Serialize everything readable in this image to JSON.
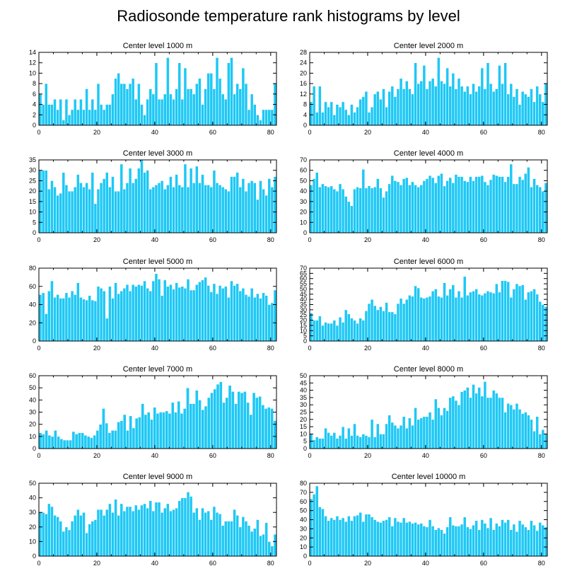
{
  "title": "Radiosonde temperature rank histograms by level",
  "colors": {
    "bar": "#1ec8f5",
    "bar_edge": "#ffffff",
    "axis": "#000000"
  },
  "chart_data": [
    {
      "type": "bar",
      "title": "Center level 1000 m",
      "xlim": [
        0,
        82
      ],
      "ylim": [
        0,
        14
      ],
      "xticks": [
        0,
        20,
        40,
        60,
        80
      ],
      "yticks": [
        0,
        2,
        4,
        6,
        8,
        10,
        12,
        14
      ],
      "values": [
        6,
        4,
        8,
        4,
        4,
        5,
        3,
        5,
        1,
        5,
        2,
        3,
        5,
        3,
        5,
        3,
        7,
        3,
        5,
        3,
        8,
        4,
        3,
        4,
        4,
        6,
        9,
        10,
        8,
        8,
        7,
        8,
        9,
        5,
        8,
        4,
        2,
        5,
        7,
        6,
        12,
        5,
        5,
        6,
        13,
        6,
        5,
        7,
        12,
        5,
        11,
        7,
        7,
        6,
        8,
        9,
        4,
        7,
        10,
        10,
        7,
        13,
        9,
        6,
        5,
        12,
        13,
        6,
        8,
        7,
        11,
        8,
        3,
        6,
        4,
        2,
        1,
        3,
        3,
        3,
        3,
        8
      ]
    },
    {
      "type": "bar",
      "title": "Center level 2000 m",
      "xlim": [
        0,
        82
      ],
      "ylim": [
        0,
        28
      ],
      "xticks": [
        0,
        20,
        40,
        60,
        80
      ],
      "yticks": [
        0,
        4,
        8,
        12,
        16,
        20,
        24,
        28
      ],
      "values": [
        9,
        15,
        5,
        15,
        5,
        9,
        7,
        9,
        4,
        8,
        7,
        9,
        6,
        4,
        8,
        5,
        7,
        10,
        11,
        13,
        5,
        7,
        12,
        13,
        10,
        14,
        7,
        13,
        15,
        11,
        14,
        18,
        14,
        17,
        14,
        12,
        24,
        16,
        17,
        23,
        14,
        17,
        18,
        15,
        26,
        17,
        16,
        22,
        15,
        20,
        14,
        18,
        15,
        13,
        15,
        12,
        16,
        13,
        15,
        22,
        14,
        24,
        16,
        13,
        14,
        23,
        16,
        24,
        12,
        16,
        11,
        14,
        8,
        13,
        12,
        11,
        14,
        9,
        15,
        12,
        9,
        16
      ]
    },
    {
      "type": "bar",
      "title": "Center level 3000 m",
      "xlim": [
        0,
        82
      ],
      "ylim": [
        0,
        35
      ],
      "xticks": [
        0,
        20,
        40,
        60,
        80
      ],
      "yticks": [
        0,
        5,
        10,
        15,
        20,
        25,
        30,
        35
      ],
      "values": [
        30,
        30,
        30,
        21,
        25,
        22,
        18,
        19,
        29,
        23,
        20,
        20,
        22,
        28,
        24,
        22,
        24,
        21,
        29,
        14,
        21,
        24,
        26,
        29,
        22,
        27,
        20,
        20,
        33,
        21,
        24,
        31,
        24,
        26,
        31,
        35,
        29,
        30,
        21,
        22,
        23,
        24,
        25,
        21,
        23,
        27,
        22,
        28,
        23,
        22,
        33,
        22,
        31,
        24,
        32,
        24,
        28,
        23,
        23,
        22,
        30,
        24,
        23,
        22,
        21,
        20,
        27,
        27,
        29,
        22,
        26,
        20,
        24,
        25,
        24,
        16,
        25,
        21,
        18,
        26,
        22,
        27
      ]
    },
    {
      "type": "bar",
      "title": "Center level 4000 m",
      "xlim": [
        0,
        82
      ],
      "ylim": [
        0,
        70
      ],
      "xticks": [
        0,
        20,
        40,
        60,
        80
      ],
      "yticks": [
        0,
        10,
        20,
        30,
        40,
        50,
        60,
        70
      ],
      "values": [
        46,
        52,
        58,
        44,
        47,
        45,
        44,
        45,
        42,
        40,
        47,
        42,
        35,
        30,
        26,
        42,
        44,
        43,
        61,
        43,
        45,
        43,
        44,
        52,
        43,
        34,
        40,
        47,
        55,
        50,
        49,
        46,
        52,
        53,
        46,
        49,
        46,
        44,
        46,
        50,
        52,
        55,
        53,
        48,
        55,
        57,
        45,
        50,
        53,
        48,
        56,
        54,
        54,
        50,
        49,
        54,
        50,
        54,
        54,
        55,
        49,
        46,
        51,
        56,
        55,
        54,
        54,
        49,
        54,
        66,
        47,
        47,
        54,
        51,
        57,
        63,
        44,
        52,
        46,
        44,
        40,
        48
      ]
    },
    {
      "type": "bar",
      "title": "Center level 5000 m",
      "xlim": [
        0,
        82
      ],
      "ylim": [
        0,
        80
      ],
      "xticks": [
        0,
        20,
        40,
        60,
        80
      ],
      "yticks": [
        0,
        20,
        40,
        60,
        80
      ],
      "values": [
        51,
        53,
        30,
        55,
        66,
        48,
        51,
        47,
        47,
        53,
        48,
        55,
        51,
        64,
        48,
        46,
        45,
        50,
        45,
        44,
        60,
        58,
        55,
        25,
        60,
        47,
        64,
        52,
        55,
        58,
        62,
        55,
        62,
        60,
        62,
        61,
        66,
        58,
        55,
        66,
        74,
        68,
        50,
        67,
        60,
        62,
        57,
        64,
        59,
        60,
        58,
        68,
        56,
        56,
        62,
        65,
        67,
        70,
        61,
        54,
        63,
        52,
        61,
        58,
        60,
        48,
        66,
        61,
        63,
        55,
        58,
        51,
        49,
        58,
        48,
        52,
        47,
        53,
        50,
        40,
        42,
        56
      ]
    },
    {
      "type": "bar",
      "title": "Center level 6000 m",
      "xlim": [
        0,
        82
      ],
      "ylim": [
        0,
        70
      ],
      "xticks": [
        0,
        20,
        40,
        60,
        80
      ],
      "yticks": [
        0,
        5,
        10,
        15,
        20,
        25,
        30,
        35,
        40,
        45,
        50,
        55,
        60,
        65,
        70
      ],
      "values": [
        27,
        20,
        20,
        24,
        15,
        18,
        17,
        17,
        20,
        15,
        23,
        18,
        30,
        26,
        22,
        20,
        17,
        22,
        20,
        29,
        36,
        40,
        34,
        30,
        33,
        29,
        37,
        28,
        28,
        26,
        36,
        41,
        36,
        40,
        44,
        43,
        53,
        51,
        42,
        41,
        42,
        43,
        48,
        50,
        43,
        42,
        56,
        44,
        50,
        54,
        42,
        48,
        42,
        62,
        44,
        47,
        48,
        50,
        45,
        44,
        46,
        48,
        47,
        46,
        55,
        47,
        58,
        58,
        57,
        42,
        50,
        55,
        53,
        54,
        40,
        47,
        48,
        50,
        45,
        38,
        35,
        33
      ]
    },
    {
      "type": "bar",
      "title": "Center level 7000 m",
      "xlim": [
        0,
        82
      ],
      "ylim": [
        0,
        60
      ],
      "xticks": [
        0,
        20,
        40,
        60,
        80
      ],
      "yticks": [
        0,
        10,
        20,
        30,
        40,
        50,
        60
      ],
      "values": [
        13,
        12,
        15,
        11,
        10,
        15,
        10,
        8,
        7,
        7,
        7,
        14,
        12,
        13,
        13,
        11,
        10,
        9,
        11,
        15,
        20,
        33,
        21,
        13,
        15,
        15,
        22,
        23,
        28,
        15,
        27,
        17,
        25,
        26,
        37,
        28,
        30,
        24,
        34,
        29,
        30,
        30,
        31,
        29,
        38,
        30,
        39,
        29,
        33,
        50,
        37,
        37,
        48,
        40,
        32,
        35,
        42,
        46,
        49,
        53,
        55,
        38,
        42,
        52,
        47,
        37,
        47,
        46,
        47,
        38,
        28,
        46,
        42,
        43,
        36,
        33,
        34,
        33,
        23
      ]
    },
    {
      "type": "bar",
      "title": "Center level 8000 m",
      "xlim": [
        0,
        82
      ],
      "ylim": [
        0,
        50
      ],
      "xticks": [
        0,
        20,
        40,
        60,
        80
      ],
      "yticks": [
        0,
        5,
        10,
        15,
        20,
        25,
        30,
        35,
        40,
        45,
        50
      ],
      "values": [
        10,
        6,
        8,
        7,
        7,
        14,
        11,
        9,
        11,
        7,
        9,
        15,
        7,
        14,
        9,
        17,
        9,
        8,
        10,
        9,
        8,
        20,
        8,
        17,
        10,
        10,
        17,
        23,
        18,
        16,
        14,
        16,
        22,
        14,
        21,
        16,
        28,
        20,
        21,
        22,
        22,
        25,
        20,
        34,
        28,
        23,
        28,
        26,
        35,
        36,
        33,
        30,
        39,
        40,
        42,
        35,
        44,
        38,
        42,
        36,
        46,
        35,
        35,
        40,
        38,
        35,
        35,
        25,
        31,
        30,
        27,
        31,
        27,
        24,
        25,
        23,
        20,
        12,
        22,
        10,
        13,
        10
      ]
    },
    {
      "type": "bar",
      "title": "Center level 9000 m",
      "xlim": [
        0,
        82
      ],
      "ylim": [
        0,
        50
      ],
      "xticks": [
        0,
        20,
        40,
        60,
        80
      ],
      "yticks": [
        0,
        10,
        20,
        30,
        40,
        50
      ],
      "values": [
        30,
        30,
        29,
        36,
        34,
        28,
        27,
        24,
        17,
        20,
        18,
        24,
        28,
        32,
        28,
        30,
        16,
        22,
        24,
        25,
        32,
        32,
        28,
        32,
        36,
        30,
        39,
        28,
        36,
        31,
        34,
        34,
        31,
        35,
        32,
        35,
        36,
        33,
        38,
        31,
        37,
        37,
        30,
        33,
        36,
        31,
        32,
        33,
        38,
        40,
        40,
        44,
        41,
        30,
        33,
        25,
        33,
        30,
        31,
        25,
        34,
        30,
        29,
        21,
        24,
        24,
        24,
        32,
        28,
        20,
        27,
        24,
        21,
        17,
        19,
        25,
        14,
        15,
        23,
        10,
        7,
        15
      ]
    },
    {
      "type": "bar",
      "title": "Center level 10000 m",
      "xlim": [
        0,
        82
      ],
      "ylim": [
        0,
        80
      ],
      "xticks": [
        0,
        20,
        40,
        60,
        80
      ],
      "yticks": [
        0,
        10,
        20,
        30,
        40,
        50,
        60,
        70,
        80
      ],
      "values": [
        63,
        68,
        77,
        54,
        52,
        44,
        39,
        42,
        40,
        44,
        40,
        42,
        38,
        44,
        39,
        44,
        45,
        48,
        38,
        46,
        46,
        43,
        40,
        38,
        37,
        39,
        40,
        43,
        33,
        42,
        38,
        37,
        42,
        37,
        38,
        36,
        37,
        35,
        36,
        33,
        32,
        40,
        33,
        29,
        31,
        29,
        25,
        32,
        43,
        34,
        33,
        33,
        35,
        43,
        32,
        30,
        34,
        39,
        29,
        40,
        36,
        31,
        42,
        29,
        36,
        33,
        40,
        37,
        40,
        29,
        35,
        27,
        39,
        35,
        32,
        29,
        39,
        34,
        28,
        37,
        34,
        32
      ]
    }
  ]
}
